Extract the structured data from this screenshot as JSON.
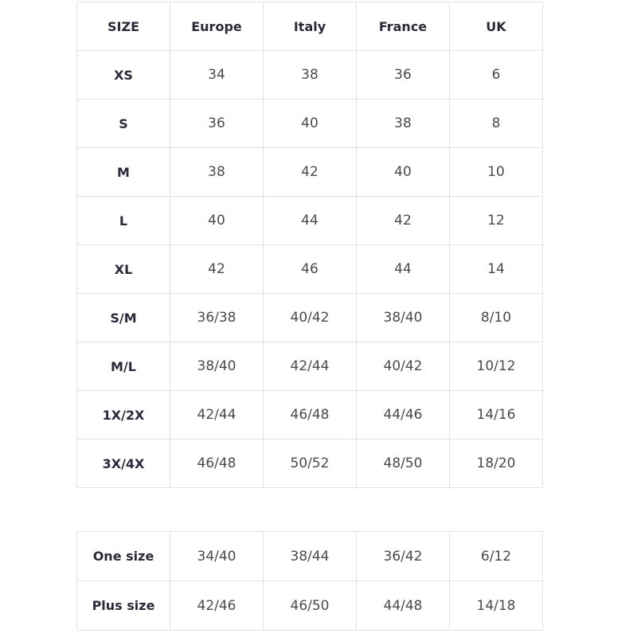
{
  "size_table": {
    "headers": [
      "SIZE",
      "Europe",
      "Italy",
      "France",
      "UK"
    ],
    "rows": [
      [
        "XS",
        "34",
        "38",
        "36",
        "6"
      ],
      [
        "S",
        "36",
        "40",
        "38",
        "8"
      ],
      [
        "M",
        "38",
        "42",
        "40",
        "10"
      ],
      [
        "L",
        "40",
        "44",
        "42",
        "12"
      ],
      [
        "XL",
        "42",
        "46",
        "44",
        "14"
      ],
      [
        "S/M",
        "36/38",
        "40/42",
        "38/40",
        "8/10"
      ],
      [
        "M/L",
        "38/40",
        "42/44",
        "40/42",
        "10/12"
      ],
      [
        "1X/2X",
        "42/44",
        "46/48",
        "44/46",
        "14/16"
      ],
      [
        "3X/4X",
        "46/48",
        "50/52",
        "48/50",
        "18/20"
      ]
    ]
  },
  "special_sizes": {
    "rows": [
      [
        "One size",
        "34/40",
        "38/44",
        "36/42",
        "6/12"
      ],
      [
        "Plus size",
        "42/46",
        "46/50",
        "44/48",
        "14/18"
      ]
    ]
  }
}
